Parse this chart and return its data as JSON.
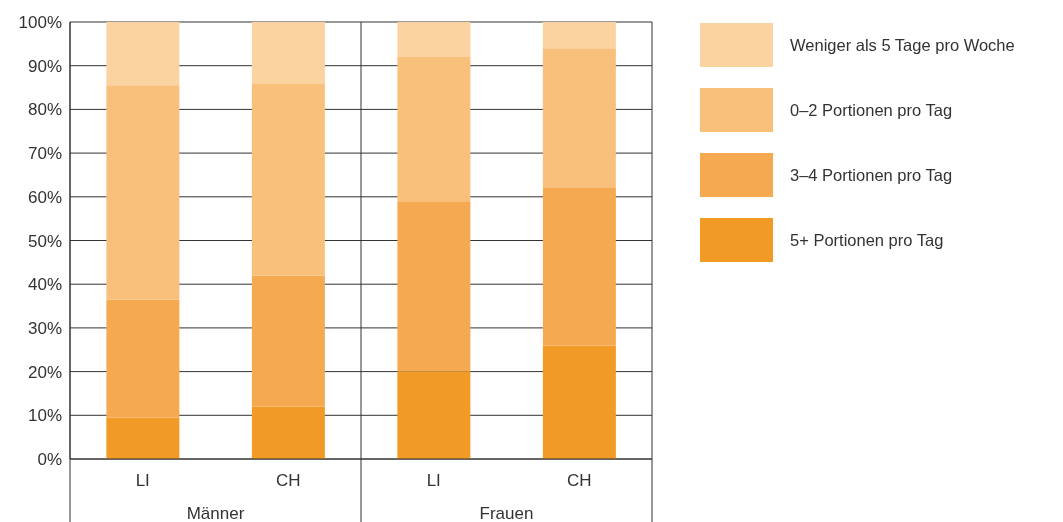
{
  "chart_data": {
    "type": "bar",
    "stacked": true,
    "categories": [
      "LI",
      "CH",
      "LI",
      "CH"
    ],
    "annotations": [
      "Männer",
      "Frauen"
    ],
    "series": [
      {
        "name": "5+ Portionen pro Tag",
        "color": "#f29a26",
        "values": [
          9.5,
          12,
          20,
          26
        ]
      },
      {
        "name": "3–4 Portionen pro Tag",
        "color": "#f5aa52",
        "values": [
          27,
          30,
          39,
          36
        ]
      },
      {
        "name": "0–2 Portionen pro Tag",
        "color": "#f8c07a",
        "values": [
          49,
          44,
          33,
          32
        ]
      },
      {
        "name": "Weniger als 5 Tage pro Woche",
        "color": "#fad3a1",
        "values": [
          14.5,
          14,
          8,
          6
        ]
      }
    ],
    "ylim": [
      0,
      100
    ],
    "yticks": [
      {
        "value": 0,
        "label": "0%"
      },
      {
        "value": 10,
        "label": "10%"
      },
      {
        "value": 20,
        "label": "20%"
      },
      {
        "value": 30,
        "label": "30%"
      },
      {
        "value": 40,
        "label": "40%"
      },
      {
        "value": 50,
        "label": "50%"
      },
      {
        "value": 60,
        "label": "60%"
      },
      {
        "value": 70,
        "label": "70%"
      },
      {
        "value": 80,
        "label": "80%"
      },
      {
        "value": 90,
        "label": "90%"
      },
      {
        "value": 100,
        "label": "100%"
      }
    ],
    "grid": "y",
    "legend": "right"
  }
}
